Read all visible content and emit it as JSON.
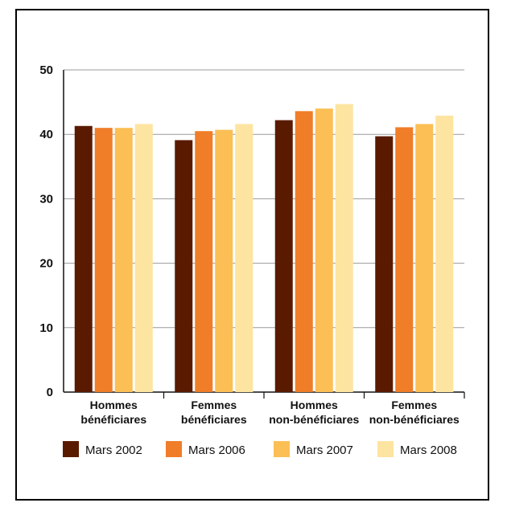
{
  "chart_data": {
    "type": "bar",
    "categories": [
      [
        "Hommes",
        "bénéficiares"
      ],
      [
        "Femmes",
        "bénéficiares"
      ],
      [
        "Hommes",
        "non-bénéficiares"
      ],
      [
        "Femmes",
        "non-bénéficiares"
      ]
    ],
    "series": [
      {
        "name": "Mars 2002",
        "color": "#5a1a00",
        "values": [
          41.3,
          39.1,
          42.2,
          39.7
        ]
      },
      {
        "name": "Mars 2006",
        "color": "#f07d28",
        "values": [
          41.0,
          40.5,
          43.6,
          41.1
        ]
      },
      {
        "name": "Mars 2007",
        "color": "#fbbf55",
        "values": [
          41.0,
          40.7,
          44.0,
          41.6
        ]
      },
      {
        "name": "Mars 2008",
        "color": "#fde4a0",
        "values": [
          41.6,
          41.6,
          44.7,
          42.9
        ]
      }
    ],
    "ylim": [
      0,
      50
    ],
    "yticks": [
      0,
      10,
      20,
      30,
      40,
      50
    ],
    "grid": true,
    "legend_position": "bottom"
  }
}
